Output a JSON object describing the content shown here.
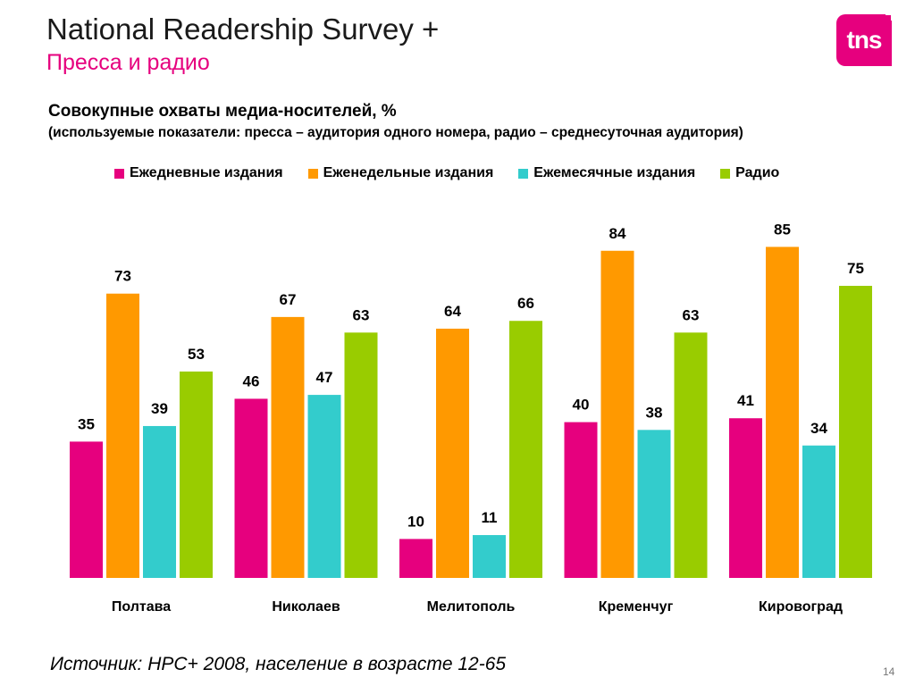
{
  "header": {
    "title": "National Readership Survey +",
    "subtitle": "Пресса и радио",
    "logo_text": "tns"
  },
  "chart_data": {
    "type": "bar",
    "title": "Совокупные охваты медиа-носителей, %",
    "subtitle": "(используемые показатели: пресса – аудитория одного номера, радио – среднесуточная аудитория)",
    "categories": [
      "Полтава",
      "Николаев",
      "Мелитополь",
      "Кременчуг",
      "Кировоград"
    ],
    "series": [
      {
        "name": "Ежедневные издания",
        "color": "#e6007e",
        "values": [
          35,
          46,
          10,
          40,
          41
        ]
      },
      {
        "name": "Еженедельные издания",
        "color": "#ff9900",
        "values": [
          73,
          67,
          64,
          84,
          85
        ]
      },
      {
        "name": "Ежемесячные издания",
        "color": "#33cccc",
        "values": [
          39,
          47,
          11,
          38,
          34
        ]
      },
      {
        "name": "Радио",
        "color": "#99cc00",
        "values": [
          53,
          63,
          66,
          63,
          75
        ]
      }
    ],
    "ylim": [
      0,
      100
    ],
    "grid": false,
    "legend_position": "top"
  },
  "footer": {
    "source": "Источник: НРС+ 2008, население в возрасте 12-65",
    "page_number": "14"
  }
}
